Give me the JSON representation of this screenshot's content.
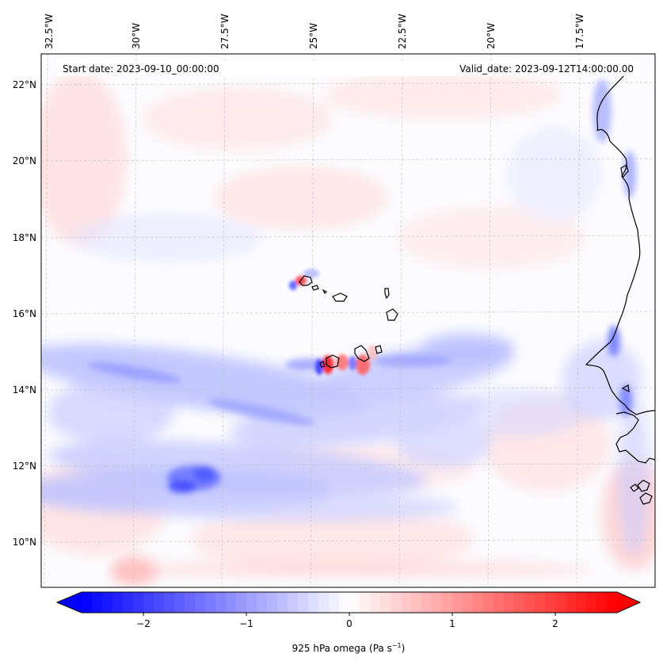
{
  "map": {
    "start_date": "Start date: 2023-09-10_00:00:00",
    "valid_date": "Valid_date: 2023-09-12T14:00:00.00",
    "longitude_labels": [
      "32.5°W",
      "30°W",
      "27.5°W",
      "25°W",
      "22.5°W",
      "20°W",
      "17.5°W"
    ],
    "latitude_labels": [
      "22°N",
      "20°N",
      "18°N",
      "16°N",
      "14°N",
      "12°N",
      "10°N"
    ]
  },
  "colorbar": {
    "label": "925 hPa omega (Pa s",
    "label_sup": "−1",
    "label_end": ")",
    "ticks": [
      "−2",
      "−1",
      "0",
      "1",
      "2"
    ],
    "tick_values": [
      -2,
      -1,
      0,
      1,
      2
    ],
    "min": -2.6,
    "max": 2.6,
    "colors": {
      "low": "#0000ff",
      "mid": "#ffffff",
      "high": "#ff0000"
    }
  },
  "colors": {
    "coast": "#000000",
    "grid": "#bbbbbb",
    "frame": "#000000"
  }
}
